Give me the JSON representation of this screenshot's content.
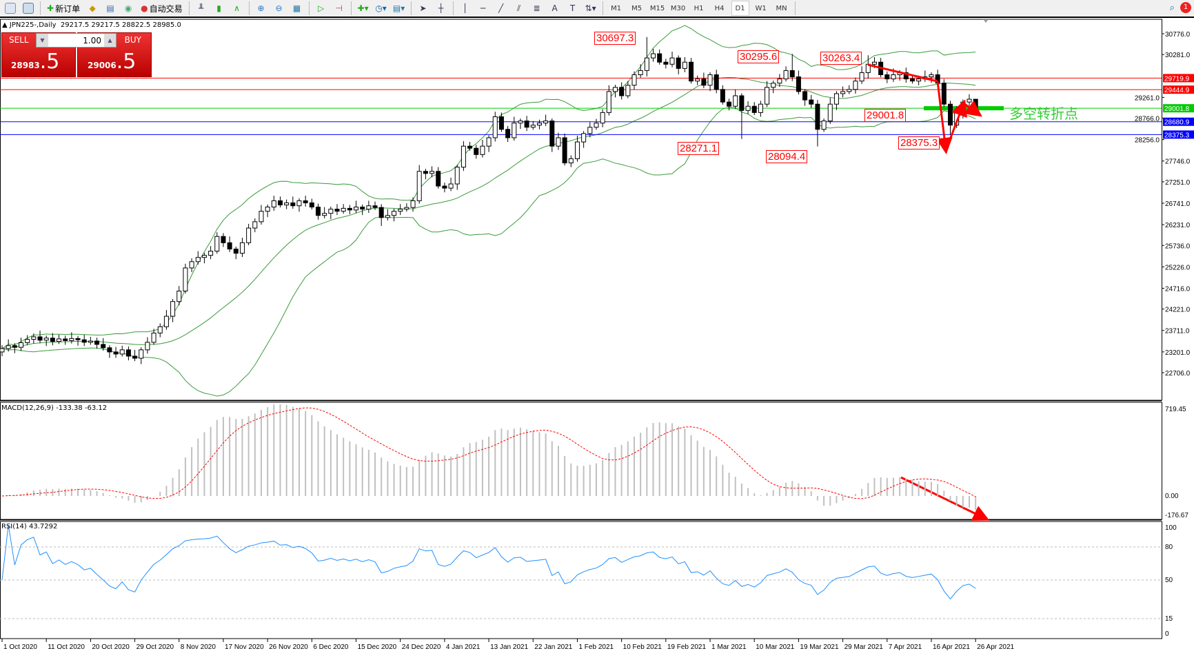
{
  "toolbar": {
    "new_order": "新订单",
    "auto_trading": "自动交易",
    "timeframes": [
      "M1",
      "M5",
      "M15",
      "M30",
      "H1",
      "H4",
      "D1",
      "W1",
      "MN"
    ],
    "active_timeframe": "D1",
    "notification_count": "1",
    "icons": [
      "new-chart-icon",
      "zoom-chart-icon",
      "new-order-icon",
      "meta-editor-icon",
      "navigator-icon",
      "signals-icon",
      "auto-trading-icon",
      "bar-chart-icon",
      "candlestick-icon",
      "line-chart-icon",
      "zoom-in-icon",
      "zoom-out-icon",
      "tile-windows-icon",
      "auto-scroll-icon",
      "chart-shift-icon",
      "indicators-icon",
      "periods-icon",
      "templates-icon",
      "cursor-icon",
      "crosshair-icon",
      "vertical-line-icon",
      "horizontal-line-icon",
      "trendline-icon",
      "equidistant-channel-icon",
      "fibonacci-icon",
      "text-icon",
      "text-label-icon",
      "arrows-icon",
      "search-icon"
    ]
  },
  "chart": {
    "header": "JPN225-,Daily  29217.5 29217.5 28822.5 28985.0",
    "sell_label": "SELL",
    "buy_label": "BUY",
    "lot": "1.00",
    "sell_price_main": "28983",
    "sell_price_big": ".5",
    "buy_price_main": "29006",
    "buy_price_big": ".5",
    "annotation": "多空转折点",
    "price_labels": [
      "30697.3",
      "30295.6",
      "30263.4",
      "29001.8",
      "28271.1",
      "28094.4",
      "28375.3"
    ],
    "macd_label": "MACD(12,26,9) -133.38 -63.12",
    "rsi_label": "RSI(14) 43.7292",
    "colors": {
      "bull": "#ffffff",
      "bear": "#000000",
      "bands": "#3a9a3a",
      "resistance": "#ff0000",
      "pivot": "#00cc00",
      "support": "#0000ff",
      "signal": "#ff0000",
      "histogram": "#c0c0c0",
      "rsi": "#1e90ff",
      "arrow": "#ff0000"
    }
  },
  "chart_data": {
    "type": "candlestick",
    "symbol": "JPN225-",
    "timeframe": "Daily",
    "y_ticks": [
      "30776.0",
      "30281.0",
      "29261.0",
      "28766.0",
      "28256.0",
      "27746.0",
      "27251.0",
      "26741.0",
      "26231.0",
      "25736.0",
      "25226.0",
      "24716.0",
      "24221.0",
      "23711.0",
      "23201.0",
      "22706.0"
    ],
    "ylim": [
      22706,
      30776
    ],
    "x_ticks": [
      "1 Oct 2020",
      "11 Oct 2020",
      "20 Oct 2020",
      "29 Oct 2020",
      "8 Nov 2020",
      "17 Nov 2020",
      "26 Nov 2020",
      "6 Dec 2020",
      "15 Dec 2020",
      "24 Dec 2020",
      "4 Jan 2021",
      "13 Jan 2021",
      "22 Jan 2021",
      "1 Feb 2021",
      "10 Feb 2021",
      "19 Feb 2021",
      "1 Mar 2021",
      "10 Mar 2021",
      "19 Mar 2021",
      "29 Mar 2021",
      "7 Apr 2021",
      "16 Apr 2021",
      "26 Apr 2021"
    ],
    "hlines": [
      {
        "price": 29719.9,
        "label": "29719.9",
        "kind": "resistance"
      },
      {
        "price": 29444.9,
        "label": "29444.9",
        "kind": "resistance"
      },
      {
        "price": 29001.8,
        "label": "29001.8",
        "kind": "pivot"
      },
      {
        "price": 28680.9,
        "label": "28680.9",
        "kind": "support"
      },
      {
        "price": 28375.3,
        "label": "28375.3",
        "kind": "support"
      }
    ],
    "indicators": {
      "bollinger": {
        "period": 20,
        "deviation": 2
      },
      "macd": {
        "fast": 12,
        "slow": 26,
        "signal": 9,
        "main": -133.38,
        "signal_value": -63.12,
        "y_ticks": [
          "719.45",
          "0.00",
          "-176.67"
        ],
        "ylim": [
          -176.67,
          719.45
        ]
      },
      "rsi": {
        "period": 14,
        "value": 43.7292,
        "levels": [
          80,
          50,
          15
        ],
        "y_ticks": [
          "100",
          "80",
          "50",
          "15",
          "0"
        ]
      }
    },
    "ohlc": [
      [
        23200,
        23360,
        23100,
        23280
      ],
      [
        23280,
        23500,
        23210,
        23350
      ],
      [
        23350,
        23410,
        23170,
        23310
      ],
      [
        23310,
        23540,
        23220,
        23420
      ],
      [
        23420,
        23600,
        23360,
        23500
      ],
      [
        23500,
        23640,
        23400,
        23560
      ],
      [
        23560,
        23710,
        23410,
        23480
      ],
      [
        23480,
        23590,
        23340,
        23530
      ],
      [
        23530,
        23650,
        23360,
        23450
      ],
      [
        23450,
        23610,
        23390,
        23510
      ],
      [
        23510,
        23590,
        23370,
        23470
      ],
      [
        23470,
        23670,
        23400,
        23520
      ],
      [
        23520,
        23580,
        23350,
        23490
      ],
      [
        23490,
        23610,
        23340,
        23430
      ],
      [
        23430,
        23560,
        23370,
        23460
      ],
      [
        23460,
        23540,
        23280,
        23380
      ],
      [
        23380,
        23530,
        23230,
        23300
      ],
      [
        23300,
        23360,
        23060,
        23200
      ],
      [
        23200,
        23320,
        23060,
        23150
      ],
      [
        23150,
        23350,
        23090,
        23250
      ],
      [
        23250,
        23330,
        23000,
        23100
      ],
      [
        23100,
        23250,
        22980,
        23050
      ],
      [
        23050,
        23310,
        22910,
        23250
      ],
      [
        23250,
        23550,
        23160,
        23430
      ],
      [
        23430,
        23750,
        23370,
        23650
      ],
      [
        23650,
        23880,
        23550,
        23800
      ],
      [
        23800,
        24200,
        23730,
        24050
      ],
      [
        24050,
        24460,
        23910,
        24400
      ],
      [
        24400,
        24770,
        24310,
        24650
      ],
      [
        24650,
        25300,
        24590,
        25200
      ],
      [
        25200,
        25430,
        25100,
        25350
      ],
      [
        25350,
        25600,
        25280,
        25450
      ],
      [
        25450,
        25560,
        25310,
        25500
      ],
      [
        25500,
        25720,
        25410,
        25600
      ],
      [
        25600,
        26050,
        25540,
        25950
      ],
      [
        25950,
        26030,
        25700,
        25800
      ],
      [
        25800,
        25950,
        25580,
        25650
      ],
      [
        25650,
        25710,
        25410,
        25550
      ],
      [
        25550,
        25920,
        25460,
        25800
      ],
      [
        25800,
        26250,
        25740,
        26150
      ],
      [
        26150,
        26380,
        26050,
        26300
      ],
      [
        26300,
        26700,
        26230,
        26550
      ],
      [
        26550,
        26710,
        26410,
        26650
      ],
      [
        26650,
        26920,
        26560,
        26800
      ],
      [
        26800,
        26900,
        26640,
        26700
      ],
      [
        26700,
        26830,
        26600,
        26750
      ],
      [
        26750,
        26900,
        26610,
        26680
      ],
      [
        26680,
        26860,
        26540,
        26800
      ],
      [
        26800,
        26920,
        26660,
        26750
      ],
      [
        26750,
        26850,
        26590,
        26650
      ],
      [
        26650,
        26730,
        26350,
        26450
      ],
      [
        26450,
        26650,
        26380,
        26500
      ],
      [
        26500,
        26660,
        26360,
        26600
      ],
      [
        26600,
        26720,
        26460,
        26550
      ],
      [
        26550,
        26720,
        26490,
        26620
      ],
      [
        26620,
        26700,
        26480,
        26580
      ],
      [
        26580,
        26800,
        26510,
        26650
      ],
      [
        26650,
        26710,
        26460,
        26600
      ],
      [
        26600,
        26800,
        26510,
        26680
      ],
      [
        26680,
        26780,
        26580,
        26640
      ],
      [
        26640,
        26720,
        26200,
        26400
      ],
      [
        26400,
        26600,
        26330,
        26450
      ],
      [
        26450,
        26610,
        26310,
        26550
      ],
      [
        26550,
        26720,
        26460,
        26600
      ],
      [
        26600,
        26740,
        26540,
        26640
      ],
      [
        26640,
        26880,
        26540,
        26800
      ],
      [
        26800,
        27650,
        26730,
        27500
      ],
      [
        27500,
        27560,
        27310,
        27450
      ],
      [
        27450,
        27620,
        27360,
        27500
      ],
      [
        27500,
        27600,
        27090,
        27150
      ],
      [
        27150,
        27230,
        27000,
        27100
      ],
      [
        27100,
        27350,
        27030,
        27200
      ],
      [
        27200,
        27660,
        27060,
        27600
      ],
      [
        27600,
        28220,
        27510,
        28100
      ],
      [
        28100,
        28200,
        27990,
        28050
      ],
      [
        28050,
        28130,
        27800,
        27900
      ],
      [
        27900,
        28250,
        27830,
        28100
      ],
      [
        28100,
        28360,
        27960,
        28300
      ],
      [
        28300,
        28920,
        28210,
        28800
      ],
      [
        28800,
        28900,
        28440,
        28500
      ],
      [
        28500,
        28580,
        28200,
        28300
      ],
      [
        28300,
        28800,
        28230,
        28650
      ],
      [
        28650,
        28760,
        28510,
        28700
      ],
      [
        28700,
        28820,
        28460,
        28550
      ],
      [
        28550,
        28700,
        28490,
        28600
      ],
      [
        28600,
        28730,
        28500,
        28650
      ],
      [
        28650,
        28850,
        28580,
        28700
      ],
      [
        28700,
        28760,
        27960,
        28100
      ],
      [
        28100,
        28420,
        28010,
        28300
      ],
      [
        28300,
        28400,
        27640,
        27700
      ],
      [
        27700,
        27880,
        27600,
        27800
      ],
      [
        27800,
        28350,
        27730,
        28200
      ],
      [
        28200,
        28460,
        28060,
        28400
      ],
      [
        28400,
        28670,
        28310,
        28550
      ],
      [
        28550,
        28750,
        28490,
        28650
      ],
      [
        28650,
        28980,
        28550,
        28900
      ],
      [
        28900,
        29550,
        28830,
        29400
      ],
      [
        29400,
        29560,
        29260,
        29500
      ],
      [
        29500,
        29620,
        29210,
        29300
      ],
      [
        29300,
        29650,
        29240,
        29550
      ],
      [
        29550,
        29880,
        29450,
        29800
      ],
      [
        29800,
        30050,
        29730,
        29900
      ],
      [
        29900,
        30697.3,
        29760,
        30200
      ],
      [
        30200,
        30420,
        30110,
        30300
      ],
      [
        30300,
        30400,
        30040,
        30100
      ],
      [
        30100,
        30180,
        29950,
        30050
      ],
      [
        30050,
        30350,
        29980,
        30200
      ],
      [
        30200,
        30260,
        29810,
        29950
      ],
      [
        29950,
        30220,
        29860,
        30100
      ],
      [
        30100,
        30200,
        29590,
        29650
      ],
      [
        29650,
        29780,
        29550,
        29700
      ],
      [
        29700,
        29850,
        29480,
        29550
      ],
      [
        29550,
        29860,
        29410,
        29800
      ],
      [
        29800,
        29920,
        29360,
        29450
      ],
      [
        29450,
        29550,
        29090,
        29150
      ],
      [
        29150,
        29230,
        28950,
        29050
      ],
      [
        29050,
        29450,
        28980,
        29300
      ],
      [
        29300,
        29360,
        28271.1,
        28950
      ],
      [
        28950,
        29170,
        28860,
        29050
      ],
      [
        29050,
        29150,
        28840,
        28900
      ],
      [
        28900,
        29180,
        28800,
        29100
      ],
      [
        29100,
        29650,
        29030,
        29500
      ],
      [
        29500,
        29660,
        29360,
        29600
      ],
      [
        29600,
        29820,
        29510,
        29700
      ],
      [
        29700,
        30000,
        29640,
        29900
      ],
      [
        29900,
        30295.6,
        29650,
        29750
      ],
      [
        29750,
        29900,
        29330,
        29400
      ],
      [
        29400,
        29460,
        29060,
        29200
      ],
      [
        29200,
        29320,
        29010,
        29100
      ],
      [
        29100,
        29200,
        28094.4,
        28500
      ],
      [
        28500,
        28760,
        28440,
        28700
      ],
      [
        28700,
        29250,
        28630,
        29100
      ],
      [
        29100,
        29410,
        28960,
        29350
      ],
      [
        29350,
        29520,
        29260,
        29400
      ],
      [
        29400,
        29550,
        29340,
        29450
      ],
      [
        29450,
        29730,
        29350,
        29650
      ],
      [
        29650,
        30000,
        29580,
        29850
      ],
      [
        29850,
        30263.4,
        29710,
        30050
      ],
      [
        30050,
        30220,
        29960,
        30100
      ],
      [
        30100,
        30200,
        29740,
        29800
      ],
      [
        29800,
        29880,
        29600,
        29700
      ],
      [
        29700,
        29950,
        29630,
        29800
      ],
      [
        29800,
        29910,
        29660,
        29850
      ],
      [
        29850,
        29970,
        29610,
        29700
      ],
      [
        29700,
        29800,
        29590,
        29650
      ],
      [
        29650,
        29780,
        29550,
        29700
      ],
      [
        29700,
        29900,
        29630,
        29750
      ],
      [
        29750,
        29860,
        29610,
        29800
      ],
      [
        29800,
        29920,
        29510,
        29600
      ],
      [
        29600,
        29700,
        29040,
        29100
      ],
      [
        29100,
        29180,
        28375.3,
        28600
      ],
      [
        28600,
        29050,
        28530,
        28900
      ],
      [
        28900,
        29210,
        28760,
        29150
      ],
      [
        29150,
        29337,
        29060,
        29217.5
      ],
      [
        29217.5,
        29217.5,
        28822.5,
        28985
      ]
    ]
  }
}
